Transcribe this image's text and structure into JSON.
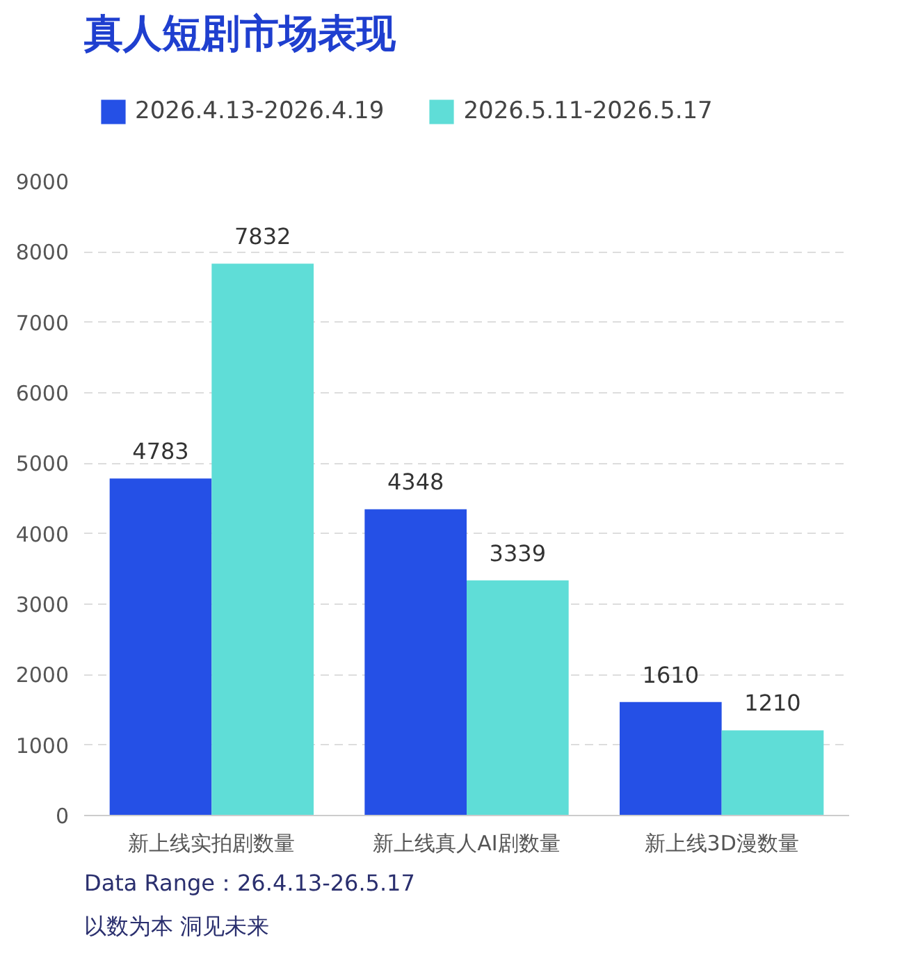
{
  "chart_data": {
    "type": "bar",
    "title": "真人短剧市场表现",
    "categories": [
      "新上线实拍剧数量",
      "新上线真人AI剧数量",
      "新上线3D漫数量"
    ],
    "series": [
      {
        "name": "2026.4.13-2026.4.19",
        "color": "#2550e6",
        "values": [
          4783,
          4348,
          1610
        ]
      },
      {
        "name": "2026.5.11-2026.5.17",
        "color": "#5fddd7",
        "values": [
          7832,
          3339,
          1210
        ]
      }
    ],
    "ylim": [
      0,
      9000
    ],
    "yticks": [
      0,
      1000,
      2000,
      3000,
      4000,
      5000,
      6000,
      7000,
      8000,
      9000
    ],
    "grid": "y",
    "legend": "top",
    "data_labels": true,
    "annotations": [
      "以数为本 洞见未来",
      "Data Range：26.4.13-26.5.17"
    ]
  }
}
